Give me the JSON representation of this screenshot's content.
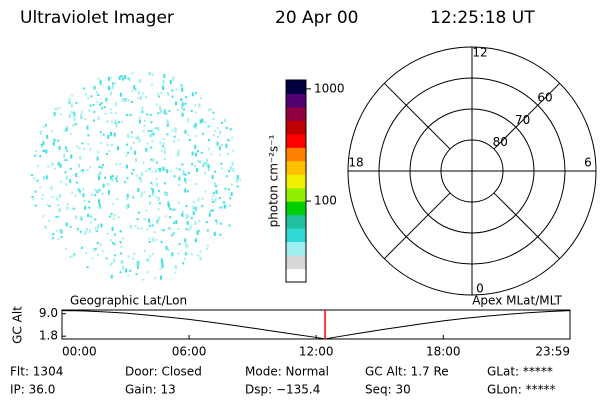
{
  "header": {
    "instrument": "Ultraviolet Imager",
    "date": "20 Apr 00",
    "time": "12:25:18 UT"
  },
  "chart_data": [
    {
      "type": "colorbar",
      "label": "photon cm⁻²s⁻¹",
      "log": true,
      "ylim": [
        19,
        1200
      ],
      "yticks": [
        100,
        1000
      ],
      "colors": [
        "#ffffff",
        "#d8d8d8",
        "#a0f0f0",
        "#30d8d8",
        "#20c0a0",
        "#00d000",
        "#90f000",
        "#f0f000",
        "#ffc000",
        "#ff8000",
        "#ff0000",
        "#c00000",
        "#900040",
        "#500070",
        "#000040"
      ]
    },
    {
      "type": "polar",
      "rlim": [
        90,
        50
      ],
      "rticks": [
        60,
        70,
        80
      ],
      "thetaticks": [
        12,
        18,
        6,
        0
      ],
      "theta_period": 24
    },
    {
      "type": "line",
      "ylabel": "GC Alt",
      "left_label": "Geographic Lat/Lon",
      "right_label": "Apex MLat/MLT",
      "xlim": [
        0,
        23.983
      ],
      "ylim": [
        0.9,
        10.2
      ],
      "xticks": [
        {
          "value": 0,
          "label": "00:00"
        },
        {
          "value": 6,
          "label": "06:00"
        },
        {
          "value": 12,
          "label": "12:00"
        },
        {
          "value": 18,
          "label": "18:00"
        },
        {
          "value": 23.983,
          "label": "23:59"
        }
      ],
      "yticks": [
        {
          "value": 9,
          "label": "9.0"
        },
        {
          "value": 1.8,
          "label": "1.8"
        }
      ],
      "x": [
        0,
        1,
        2,
        3,
        4,
        5,
        6,
        7,
        8,
        9,
        10,
        11,
        12,
        12.42,
        13,
        14,
        15,
        16,
        17,
        18,
        19,
        20,
        21,
        22,
        23,
        23.983
      ],
      "values": [
        10.0,
        9.9,
        9.6,
        9.2,
        8.6,
        7.9,
        7.2,
        6.3,
        5.4,
        4.4,
        3.4,
        2.4,
        1.4,
        0.9,
        1.6,
        2.7,
        3.8,
        4.8,
        5.8,
        6.7,
        7.5,
        8.2,
        8.8,
        9.3,
        9.7,
        10.0
      ],
      "color": "#000000",
      "marker": 12.42,
      "marker_color": "#ff0000"
    }
  ],
  "footer": {
    "rows": [
      [
        "Flt: 1304",
        "Door: Closed",
        "Mode: Normal",
        "GC Alt: 1.7 Re",
        "GLat: *****"
      ],
      [
        "IP: 36.0",
        "Gain: 13",
        "Dsp: −135.4",
        "Seq: 30",
        "GLon: *****"
      ]
    ]
  }
}
